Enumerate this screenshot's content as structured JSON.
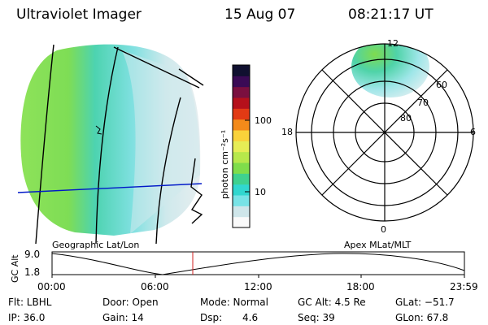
{
  "header": {
    "instrument": "Ultraviolet Imager",
    "date": "15 Aug 07",
    "time": "08:21:17 UT"
  },
  "colorbar": {
    "label": "photon cm⁻²s⁻¹",
    "ticks": [
      "100",
      "10"
    ],
    "colors": [
      "#fafafa",
      "#cfe6ea",
      "#78e3e6",
      "#31d7cf",
      "#3fd18f",
      "#7fdd4b",
      "#b7e84b",
      "#e6ed55",
      "#f9d23a",
      "#f38a1a",
      "#e23a14",
      "#b5101b",
      "#7a0f3f",
      "#3a0a55",
      "#101030"
    ]
  },
  "geo_panel": {
    "caption": "Geographic Lat/Lon"
  },
  "polar_panel": {
    "caption": "Apex MLat/MLT",
    "mlt_labels": {
      "top": "12",
      "left": "18",
      "right": "6",
      "bottom": "0"
    },
    "lat_labels": [
      "60",
      "70",
      "80"
    ]
  },
  "altitude_plot": {
    "ylabel": "GC Alt",
    "yticks": [
      "9.0",
      "1.8"
    ],
    "xticks": [
      "00:00",
      "06:00",
      "12:00",
      "18:00",
      "23:59"
    ],
    "marker_time": "08:21"
  },
  "status": {
    "row1": {
      "filter": "Flt: LBHL",
      "door": "Door: Open",
      "mode": "Mode: Normal",
      "gc_alt": "GC Alt: 4.5 Re",
      "glat": "GLat: −51.7"
    },
    "row2": {
      "ip": "IP: 36.0",
      "gain": "Gain: 14",
      "dsp_label": "Dsp:",
      "dsp_value": "4.6",
      "seq": "Seq: 39",
      "glon": "GLon: 67.8"
    }
  }
}
